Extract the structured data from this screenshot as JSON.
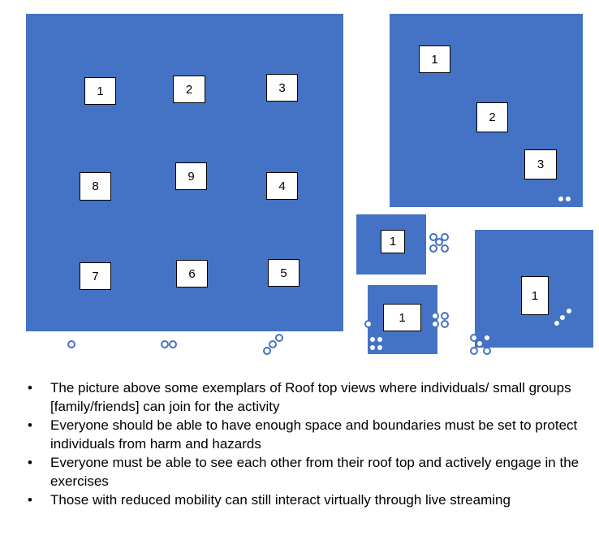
{
  "colors": {
    "roof": "#4472C4",
    "box": "#ffffff"
  },
  "layout_a": {
    "labels": [
      "1",
      "2",
      "3",
      "8",
      "9",
      "4",
      "7",
      "6",
      "5"
    ]
  },
  "layout_b": {
    "labels": [
      "1",
      "2",
      "3"
    ]
  },
  "layout_c": {
    "labels": [
      "1"
    ]
  },
  "layout_d": {
    "labels": [
      "1"
    ]
  },
  "layout_e": {
    "labels": [
      "1"
    ]
  },
  "bullets": [
    "The picture above some exemplars of Roof top views where individuals/ small groups [family/friends] can join for the activity",
    "Everyone should be able to have enough space and boundaries must be set to protect individuals from harm and hazards",
    "Everyone must be able to see each other from their roof top and actively engage in the exercises",
    "Those with reduced mobility can still interact virtually through live streaming"
  ]
}
